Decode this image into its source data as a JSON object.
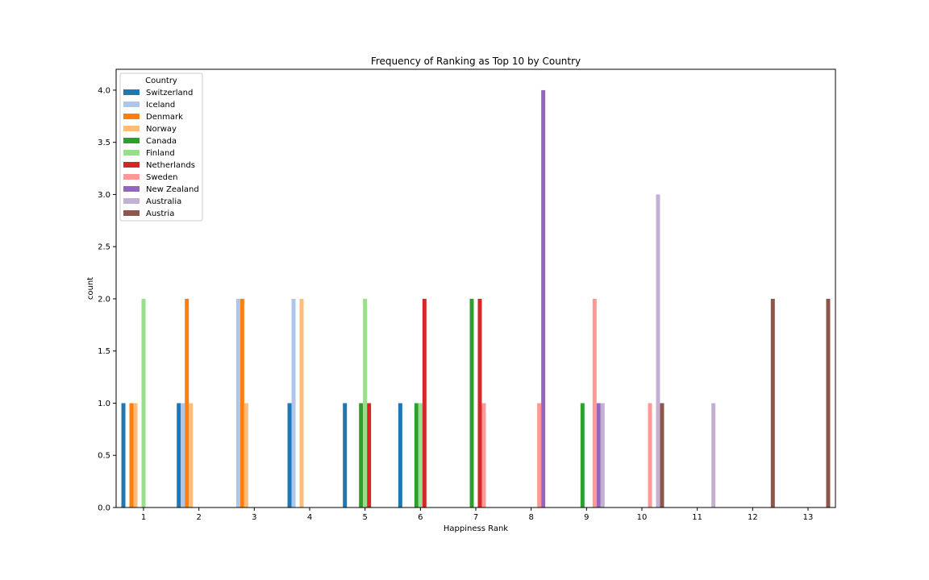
{
  "chart_data": {
    "type": "bar",
    "title": "Frequency of Ranking as Top 10 by Country",
    "xlabel": "Happiness Rank",
    "ylabel": "count",
    "categories": [
      "1",
      "2",
      "3",
      "4",
      "5",
      "6",
      "7",
      "8",
      "9",
      "10",
      "11",
      "12",
      "13"
    ],
    "ylim": [
      0,
      4.2
    ],
    "yticks": [
      "0.0",
      "0.5",
      "1.0",
      "1.5",
      "2.0",
      "2.5",
      "3.0",
      "3.5",
      "4.0"
    ],
    "grid": false,
    "legend": {
      "title": "Country",
      "placement": "top-left"
    },
    "series": [
      {
        "name": "Switzerland",
        "color": "#1f77b4",
        "values": [
          1,
          1,
          0,
          1,
          1,
          1,
          0,
          0,
          0,
          0,
          0,
          0,
          0
        ]
      },
      {
        "name": "Iceland",
        "color": "#aec7e8",
        "values": [
          0,
          1,
          2,
          2,
          0,
          0,
          0,
          0,
          0,
          0,
          0,
          0,
          0
        ]
      },
      {
        "name": "Denmark",
        "color": "#ff7f0e",
        "values": [
          1,
          2,
          2,
          0,
          0,
          0,
          0,
          0,
          0,
          0,
          0,
          0,
          0
        ]
      },
      {
        "name": "Norway",
        "color": "#ffbb78",
        "values": [
          1,
          1,
          1,
          2,
          0,
          0,
          0,
          0,
          0,
          0,
          0,
          0,
          0
        ]
      },
      {
        "name": "Canada",
        "color": "#2ca02c",
        "values": [
          0,
          0,
          0,
          0,
          1,
          1,
          2,
          0,
          1,
          0,
          0,
          0,
          0
        ]
      },
      {
        "name": "Finland",
        "color": "#98df8a",
        "values": [
          2,
          0,
          0,
          0,
          2,
          1,
          0,
          0,
          0,
          0,
          0,
          0,
          0
        ]
      },
      {
        "name": "Netherlands",
        "color": "#d62728",
        "values": [
          0,
          0,
          0,
          0,
          1,
          2,
          2,
          0,
          0,
          0,
          0,
          0,
          0
        ]
      },
      {
        "name": "Sweden",
        "color": "#ff9896",
        "values": [
          0,
          0,
          0,
          0,
          0,
          0,
          1,
          1,
          2,
          1,
          0,
          0,
          0
        ]
      },
      {
        "name": "New Zealand",
        "color": "#9467bd",
        "values": [
          0,
          0,
          0,
          0,
          0,
          0,
          0,
          4,
          1,
          0,
          0,
          0,
          0
        ]
      },
      {
        "name": "Australia",
        "color": "#c5b0d5",
        "values": [
          0,
          0,
          0,
          0,
          0,
          0,
          0,
          0,
          1,
          3,
          1,
          0,
          0
        ]
      },
      {
        "name": "Austria",
        "color": "#8c564b",
        "values": [
          0,
          0,
          0,
          0,
          0,
          0,
          0,
          0,
          0,
          1,
          0,
          2,
          2
        ]
      }
    ]
  }
}
